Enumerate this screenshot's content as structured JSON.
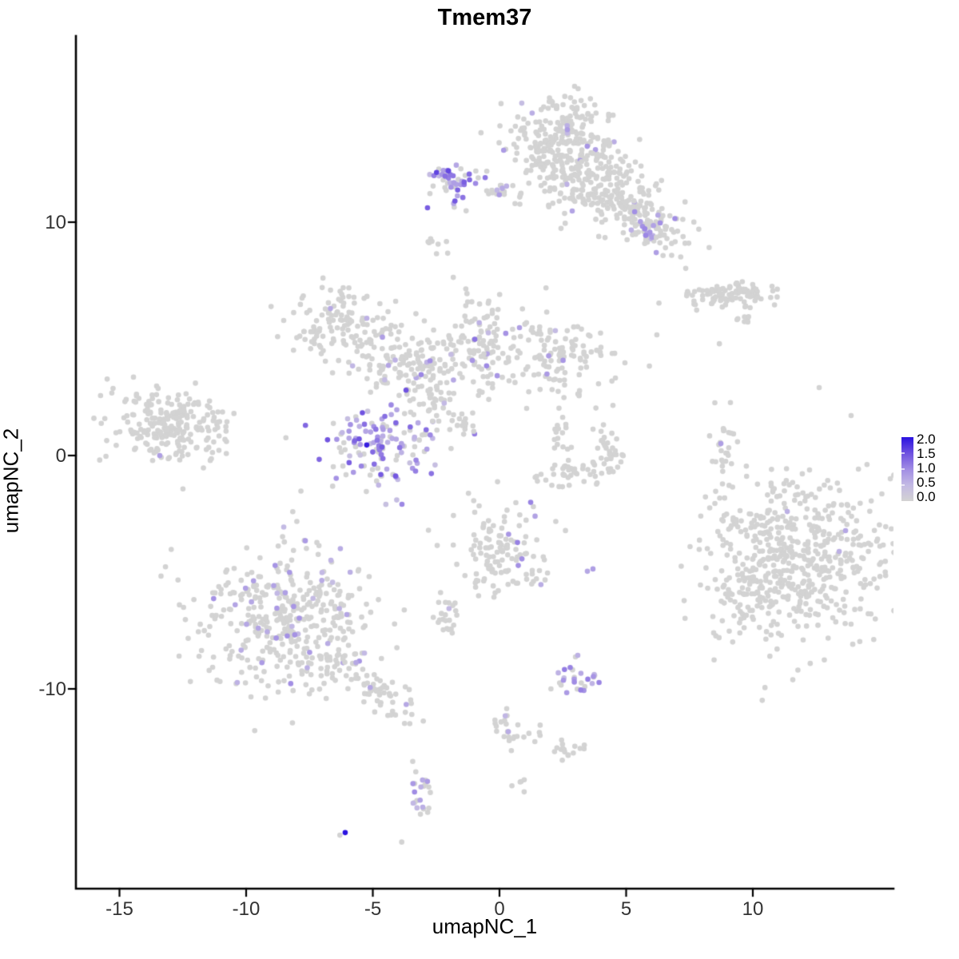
{
  "title": "Tmem37",
  "axes": {
    "x_label": "umapNC_1",
    "y_label": "umapNC_2"
  },
  "legend": {
    "labels": [
      "2.0",
      "1.5",
      "1.0",
      "0.5",
      "0.0"
    ]
  },
  "chart_data": {
    "type": "scatter",
    "title": "Tmem37",
    "xlabel": "umapNC_1",
    "ylabel": "umapNC_2",
    "xlim": [
      -16.7,
      15.6
    ],
    "ylim": [
      -18.4,
      18.0
    ],
    "x_ticks": [
      -15,
      -10,
      -5,
      0,
      5,
      10
    ],
    "x_tick_labels": [
      "-15",
      "-10",
      "-5",
      "0",
      "5",
      "10"
    ],
    "y_ticks": [
      10,
      0,
      -10
    ],
    "y_tick_labels": [
      "10",
      "0",
      "-10"
    ],
    "grid": false,
    "legend_position": "right",
    "point_radius_px": 3.3,
    "color_scale": {
      "min": 0.0,
      "max": 2.0,
      "ticks": [
        2.0,
        1.5,
        1.0,
        0.5,
        0.0
      ],
      "palette": [
        [
          0.0,
          "#d3d3d3"
        ],
        [
          0.25,
          "#c3b9e4"
        ],
        [
          0.5,
          "#a18de4"
        ],
        [
          0.75,
          "#6e51e0"
        ],
        [
          1.0,
          "#2a12e0"
        ]
      ]
    },
    "clusters": [
      {
        "name": "top-main-core",
        "cx": 2.37,
        "cy": 13.53,
        "sx": 0.95,
        "sy": 0.96,
        "rot": 0,
        "n": 260,
        "expr_frac": 0.025,
        "expr_min": 0.4,
        "expr_max": 0.9
      },
      {
        "name": "top-main-mid",
        "cx": 3.79,
        "cy": 11.82,
        "sx": 1.1,
        "sy": 0.86,
        "rot": 0,
        "n": 150,
        "expr_frac": 0.03,
        "expr_min": 0.4,
        "expr_max": 0.9
      },
      {
        "name": "top-main-arm",
        "cx": 5.21,
        "cy": 10.45,
        "sx": 1.2,
        "sy": 0.62,
        "rot": -25,
        "n": 130,
        "expr_frac": 0.05,
        "expr_min": 0.5,
        "expr_max": 1.0
      },
      {
        "name": "top-arm-tip",
        "cx": 6.15,
        "cy": 9.59,
        "sx": 0.5,
        "sy": 0.41,
        "rot": 0,
        "n": 45,
        "expr_frac": 0.3,
        "expr_min": 0.5,
        "expr_max": 1.1
      },
      {
        "name": "top-left-streak",
        "cx": -0.09,
        "cy": 11.3,
        "sx": 0.32,
        "sy": 0.17,
        "rot": 0,
        "n": 10,
        "expr_frac": 0.1,
        "expr_min": 0.5,
        "expr_max": 0.9
      },
      {
        "name": "high-expr-top-cluster",
        "cx": -1.83,
        "cy": 11.58,
        "sx": 0.69,
        "sy": 0.45,
        "rot": 0,
        "n": 50,
        "expr_frac": 0.55,
        "expr_min": 0.4,
        "expr_max": 1.7
      },
      {
        "name": "high-expr-tail",
        "cx": 0.47,
        "cy": 11.2,
        "sx": 0.38,
        "sy": 0.21,
        "rot": 0,
        "n": 12,
        "expr_frac": 0.15,
        "expr_min": 0.4,
        "expr_max": 0.9
      },
      {
        "name": "tiny-below-top",
        "cx": -2.52,
        "cy": 8.84,
        "sx": 0.28,
        "sy": 0.24,
        "rot": 0,
        "n": 8,
        "expr_frac": 0,
        "expr_min": 0,
        "expr_max": 0
      },
      {
        "name": "right-elongated",
        "cx": 9.05,
        "cy": 6.95,
        "sx": 0.95,
        "sy": 0.31,
        "rot": 0,
        "n": 100,
        "expr_frac": 0,
        "expr_min": 0,
        "expr_max": 0
      },
      {
        "name": "right-elongated-diag",
        "cx": 9.56,
        "cy": 5.96,
        "sx": 0.25,
        "sy": 0.17,
        "rot": -40,
        "n": 8,
        "expr_frac": 0,
        "expr_min": 0,
        "expr_max": 0
      },
      {
        "name": "mid-left-arm",
        "cx": -6.21,
        "cy": 5.55,
        "sx": 1.01,
        "sy": 0.75,
        "rot": 0,
        "n": 130,
        "expr_frac": 0.025,
        "expr_min": 0.4,
        "expr_max": 0.8
      },
      {
        "name": "central-west",
        "cx": -4.2,
        "cy": 4.04,
        "sx": 0.79,
        "sy": 0.82,
        "rot": 0,
        "n": 90,
        "expr_frac": 0.05,
        "expr_min": 0.4,
        "expr_max": 1.0
      },
      {
        "name": "central-stem",
        "cx": -2.68,
        "cy": 3.08,
        "sx": 0.57,
        "sy": 0.96,
        "rot": 0,
        "n": 70,
        "expr_frac": 0.1,
        "expr_min": 0.4,
        "expr_max": 1.2
      },
      {
        "name": "central-north",
        "cx": -0.73,
        "cy": 4.79,
        "sx": 0.69,
        "sy": 1.03,
        "rot": 0,
        "n": 110,
        "expr_frac": 0.07,
        "expr_min": 0.4,
        "expr_max": 1.3
      },
      {
        "name": "central-east",
        "cx": 2.37,
        "cy": 4.21,
        "sx": 1.2,
        "sy": 0.82,
        "rot": 0,
        "n": 130,
        "expr_frac": 0.03,
        "expr_min": 0.4,
        "expr_max": 0.9
      },
      {
        "name": "dense-purple-ball",
        "cx": -4.83,
        "cy": 0.34,
        "sx": 1.07,
        "sy": 1.03,
        "rot": 0,
        "n": 140,
        "expr_frac": 0.6,
        "expr_min": 0.3,
        "expr_max": 1.5
      },
      {
        "name": "diag-streak",
        "cx": -1.67,
        "cy": 1.44,
        "sx": 0.82,
        "sy": 0.17,
        "rot": -40,
        "n": 22,
        "expr_frac": 0.05,
        "expr_min": 0.4,
        "expr_max": 0.6
      },
      {
        "name": "far-left-cluster",
        "cx": -12.97,
        "cy": 1.3,
        "sx": 1.26,
        "sy": 0.82,
        "rot": -12,
        "n": 230,
        "expr_frac": 0,
        "expr_min": 0,
        "expr_max": 0
      },
      {
        "name": "crescent-a",
        "cx": 3.0,
        "cy": -0.62,
        "sx": 0.82,
        "sy": 0.34,
        "rot": 15,
        "n": 40,
        "expr_frac": 0,
        "expr_min": 0,
        "expr_max": 0
      },
      {
        "name": "crescent-b",
        "cx": 4.26,
        "cy": 0.17,
        "sx": 0.32,
        "sy": 0.75,
        "rot": 0,
        "n": 35,
        "expr_frac": 0,
        "expr_min": 0,
        "expr_max": 0
      },
      {
        "name": "crescent-c",
        "cx": 2.43,
        "cy": 0.68,
        "sx": 0.25,
        "sy": 0.48,
        "rot": 0,
        "n": 15,
        "expr_frac": 0,
        "expr_min": 0,
        "expr_max": 0
      },
      {
        "name": "right-vertical-small",
        "cx": 8.86,
        "cy": 0.34,
        "sx": 0.25,
        "sy": 0.82,
        "rot": 0,
        "n": 26,
        "expr_frac": 0,
        "expr_min": 0,
        "expr_max": 0
      },
      {
        "name": "big-right-dense",
        "cx": 11.83,
        "cy": -4.52,
        "sx": 1.74,
        "sy": 1.78,
        "rot": 0,
        "n": 520,
        "expr_frac": 0,
        "expr_min": 0,
        "expr_max": 0
      },
      {
        "name": "big-right-fringe",
        "cx": 9.87,
        "cy": -5.07,
        "sx": 0.95,
        "sy": 1.64,
        "rot": 0,
        "n": 80,
        "expr_frac": 0,
        "expr_min": 0,
        "expr_max": 0
      },
      {
        "name": "center-bottom",
        "cx": 0.22,
        "cy": -4.04,
        "sx": 0.95,
        "sy": 0.96,
        "rot": 0,
        "n": 130,
        "expr_frac": 0.07,
        "expr_min": 0.5,
        "expr_max": 1.1
      },
      {
        "name": "small-left-of-bottom",
        "cx": -2.11,
        "cy": -6.92,
        "sx": 0.41,
        "sy": 0.41,
        "rot": 0,
        "n": 22,
        "expr_frac": 0,
        "expr_min": 0,
        "expr_max": 0
      },
      {
        "name": "bottom-left-main",
        "cx": -8.3,
        "cy": -7.19,
        "sx": 1.74,
        "sy": 1.61,
        "rot": 0,
        "n": 420,
        "expr_frac": 0.1,
        "expr_min": 0.4,
        "expr_max": 1.0
      },
      {
        "name": "bottom-left-tail",
        "cx": -4.95,
        "cy": -9.79,
        "sx": 1.2,
        "sy": 0.48,
        "rot": -35,
        "n": 70,
        "expr_frac": 0.05,
        "expr_min": 0.4,
        "expr_max": 0.8
      },
      {
        "name": "purple-pocket",
        "cx": 2.93,
        "cy": -9.66,
        "sx": 0.47,
        "sy": 0.31,
        "rot": 0,
        "n": 26,
        "expr_frac": 0.65,
        "expr_min": 0.4,
        "expr_max": 1.2
      },
      {
        "name": "lower-streak-1",
        "cx": 0.19,
        "cy": -11.58,
        "sx": 0.25,
        "sy": 0.48,
        "rot": 10,
        "n": 18,
        "expr_frac": 0.12,
        "expr_min": 0.5,
        "expr_max": 0.8
      },
      {
        "name": "lower-streak-2",
        "cx": 1.29,
        "cy": -11.95,
        "sx": 0.28,
        "sy": 0.14,
        "rot": 0,
        "n": 8,
        "expr_frac": 0,
        "expr_min": 0,
        "expr_max": 0
      },
      {
        "name": "lower-arm",
        "cx": 2.62,
        "cy": -12.6,
        "sx": 0.54,
        "sy": 0.21,
        "rot": -12,
        "n": 16,
        "expr_frac": 0,
        "expr_min": 0,
        "expr_max": 0
      },
      {
        "name": "lower-tiny",
        "cx": 0.91,
        "cy": -14.01,
        "sx": 0.13,
        "sy": 0.17,
        "rot": 0,
        "n": 5,
        "expr_frac": 0,
        "expr_min": 0,
        "expr_max": 0
      },
      {
        "name": "lower-pair",
        "cx": -3.91,
        "cy": -11.51,
        "sx": 0.19,
        "sy": 0.1,
        "rot": 0,
        "n": 2,
        "expr_frac": 0,
        "expr_min": 0,
        "expr_max": 0
      },
      {
        "name": "bottom-vertical",
        "cx": -3.12,
        "cy": -14.52,
        "sx": 0.25,
        "sy": 0.68,
        "rot": 0,
        "n": 24,
        "expr_frac": 0.3,
        "expr_min": 0.4,
        "expr_max": 1.0
      }
    ],
    "extra_points": [
      {
        "x": 8.68,
        "y": 4.79,
        "value": 0
      },
      {
        "x": 12.62,
        "y": 2.91,
        "value": 0
      },
      {
        "x": 13.88,
        "y": 1.71,
        "value": 0
      },
      {
        "x": -6.3,
        "y": -16.27,
        "value": 0
      },
      {
        "x": 3.0,
        "y": -8.63,
        "value": 0
      },
      {
        "x": -5.24,
        "y": 0.45,
        "value": 1.9
      },
      {
        "x": -6.09,
        "y": -16.16,
        "value": 2.0
      },
      {
        "x": -13.41,
        "y": 0.0,
        "value": 0.8
      },
      {
        "x": 8.74,
        "y": 0.51,
        "value": 0.8
      },
      {
        "x": 11.36,
        "y": -2.4,
        "value": 0.6
      },
      {
        "x": 13.66,
        "y": -3.22,
        "value": 0.7
      },
      {
        "x": 13.41,
        "y": -4.11,
        "value": 0.6
      },
      {
        "x": 3.47,
        "y": -4.96,
        "value": 0.7
      },
      {
        "x": 3.69,
        "y": -4.86,
        "value": 0.8
      },
      {
        "x": 3.09,
        "y": -8.56,
        "value": 0.6
      },
      {
        "x": -0.09,
        "y": 3.42,
        "value": 0.9
      },
      {
        "x": 0.79,
        "y": 5.48,
        "value": 0.8
      }
    ]
  }
}
